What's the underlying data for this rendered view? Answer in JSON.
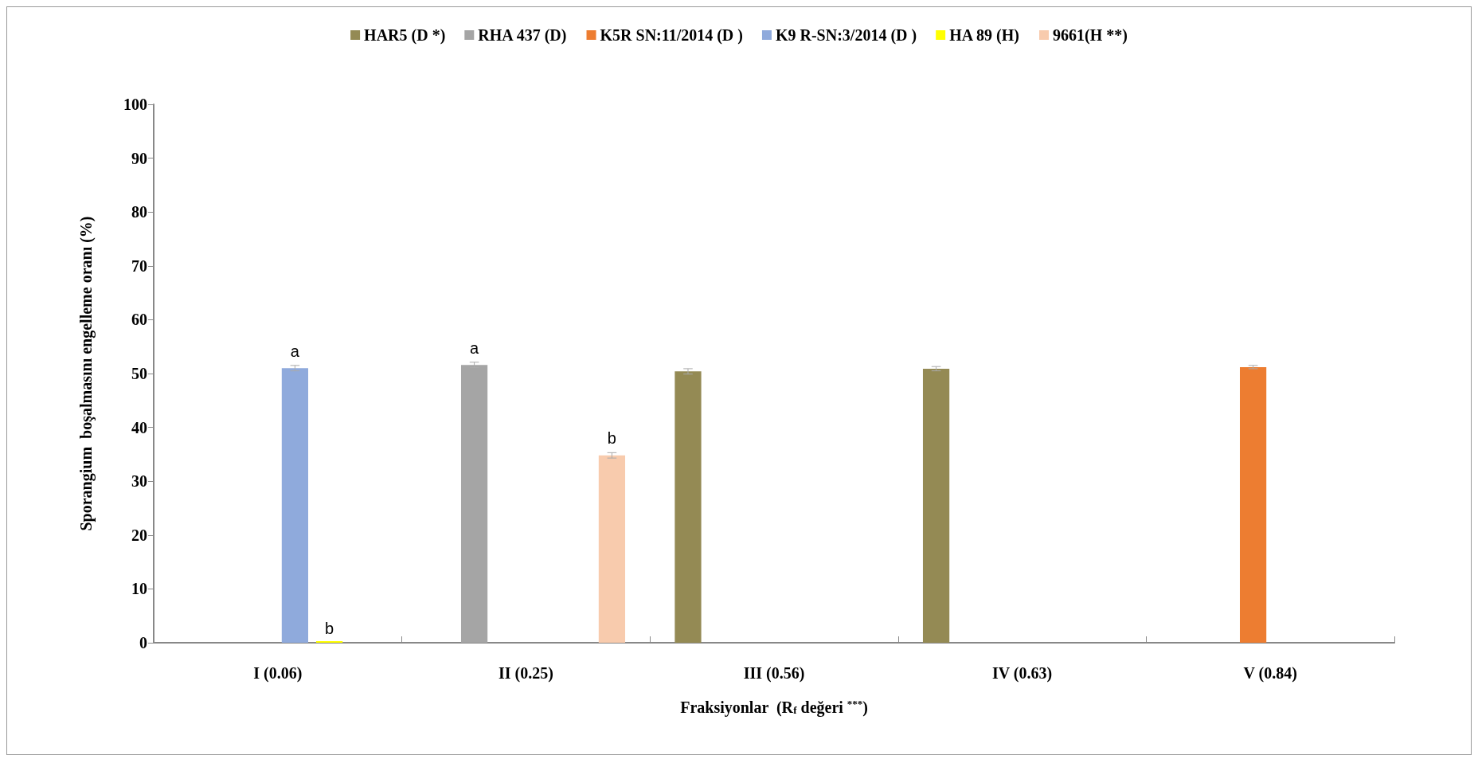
{
  "chart_data": {
    "type": "bar",
    "xlabel": "Fraksiyonlar  (R$_{f}$ değeri $^{***}$)",
    "ylabel": "Sporangium  boşalmasını engelleme oranı (%)",
    "categories": [
      "I (0.06)",
      "II (0.25)",
      "III (0.56)",
      "IV (0.63)",
      "V (0.84)"
    ],
    "series": [
      {
        "name": "HAR5 (D *)",
        "color": "#948a54",
        "values": [
          null,
          null,
          50.4,
          50.9,
          null
        ],
        "errors": [
          null,
          null,
          0.5,
          0.4,
          null
        ]
      },
      {
        "name": "RHA 437 (D)",
        "color": "#a5a5a5",
        "values": [
          null,
          51.6,
          null,
          null,
          null
        ],
        "value_labels": [
          null,
          "a",
          null,
          null,
          null
        ],
        "errors": [
          null,
          0.5,
          null,
          null,
          null
        ]
      },
      {
        "name": "K5R SN:11/2014 (D )",
        "color": "#ed7d31",
        "values": [
          null,
          null,
          null,
          null,
          51.2
        ],
        "errors": [
          null,
          null,
          null,
          null,
          0.3
        ]
      },
      {
        "name": "K9 R-SN:3/2014 (D )",
        "color": "#8faadc",
        "values": [
          51,
          null,
          null,
          null,
          null
        ],
        "value_labels": [
          "a",
          null,
          null,
          null,
          null
        ],
        "errors": [
          0.5,
          null,
          null,
          null,
          null
        ]
      },
      {
        "name": "HA 89 (H)",
        "color": "#ffff00",
        "values": [
          0,
          null,
          null,
          null,
          null
        ],
        "value_labels": [
          "b",
          null,
          null,
          null,
          null
        ]
      },
      {
        "name": "9661(H **)",
        "color": "#f8cbad",
        "values": [
          null,
          34.8,
          null,
          null,
          null
        ],
        "value_labels": [
          null,
          "b",
          null,
          null,
          null
        ],
        "errors": [
          null,
          0.5,
          null,
          null,
          null
        ]
      }
    ],
    "ylim": [
      0,
      100
    ],
    "yticks": [
      0,
      10,
      20,
      30,
      40,
      50,
      60,
      70,
      80,
      90,
      100
    ],
    "grid": false,
    "legend": "top"
  }
}
